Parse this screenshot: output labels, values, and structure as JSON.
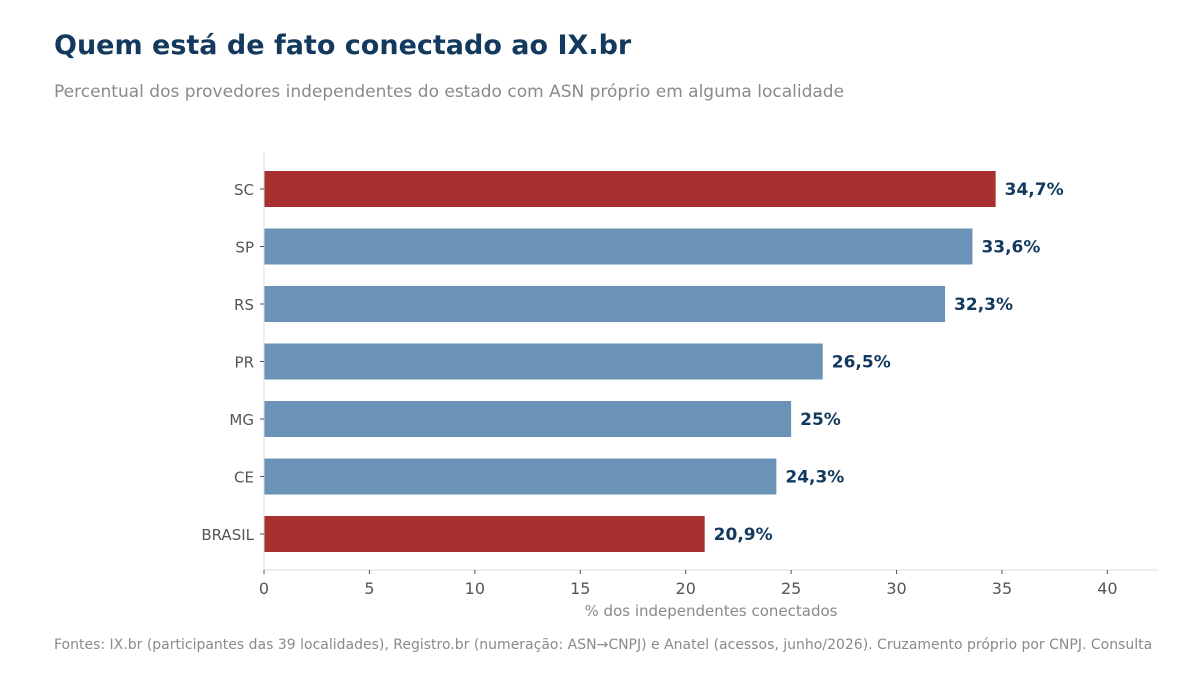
{
  "title": "Quem está de fato conectado ao IX.br",
  "subtitle": "Percentual dos provedores independentes do estado com ASN próprio em alguma localidade",
  "footer": "Fontes: IX.br (participantes das 39 localidades), Registro.br (numeração: ASN→CNPJ) e Anatel (acessos, junho/2026). Cruzamento próprio por CNPJ. Consulta",
  "chart_data": {
    "type": "bar",
    "orientation": "horizontal",
    "categories": [
      "SC",
      "SP",
      "RS",
      "PR",
      "MG",
      "CE",
      "BRASIL"
    ],
    "values": [
      34.7,
      33.6,
      32.3,
      26.5,
      25,
      24.3,
      20.9
    ],
    "value_labels": [
      "34,7%",
      "33,6%",
      "32,3%",
      "26,5%",
      "25%",
      "24,3%",
      "20,9%"
    ],
    "highlighted": [
      "SC",
      "BRASIL"
    ],
    "xlabel": "% dos independentes conectados",
    "xlim": [
      0,
      42.4
    ],
    "xticks": [
      0,
      5,
      10,
      15,
      20,
      25,
      30,
      35,
      40
    ],
    "colors": {
      "default": "#6b93b8",
      "highlight": "#a8302e",
      "label": "#133a5e"
    },
    "grid": false
  }
}
